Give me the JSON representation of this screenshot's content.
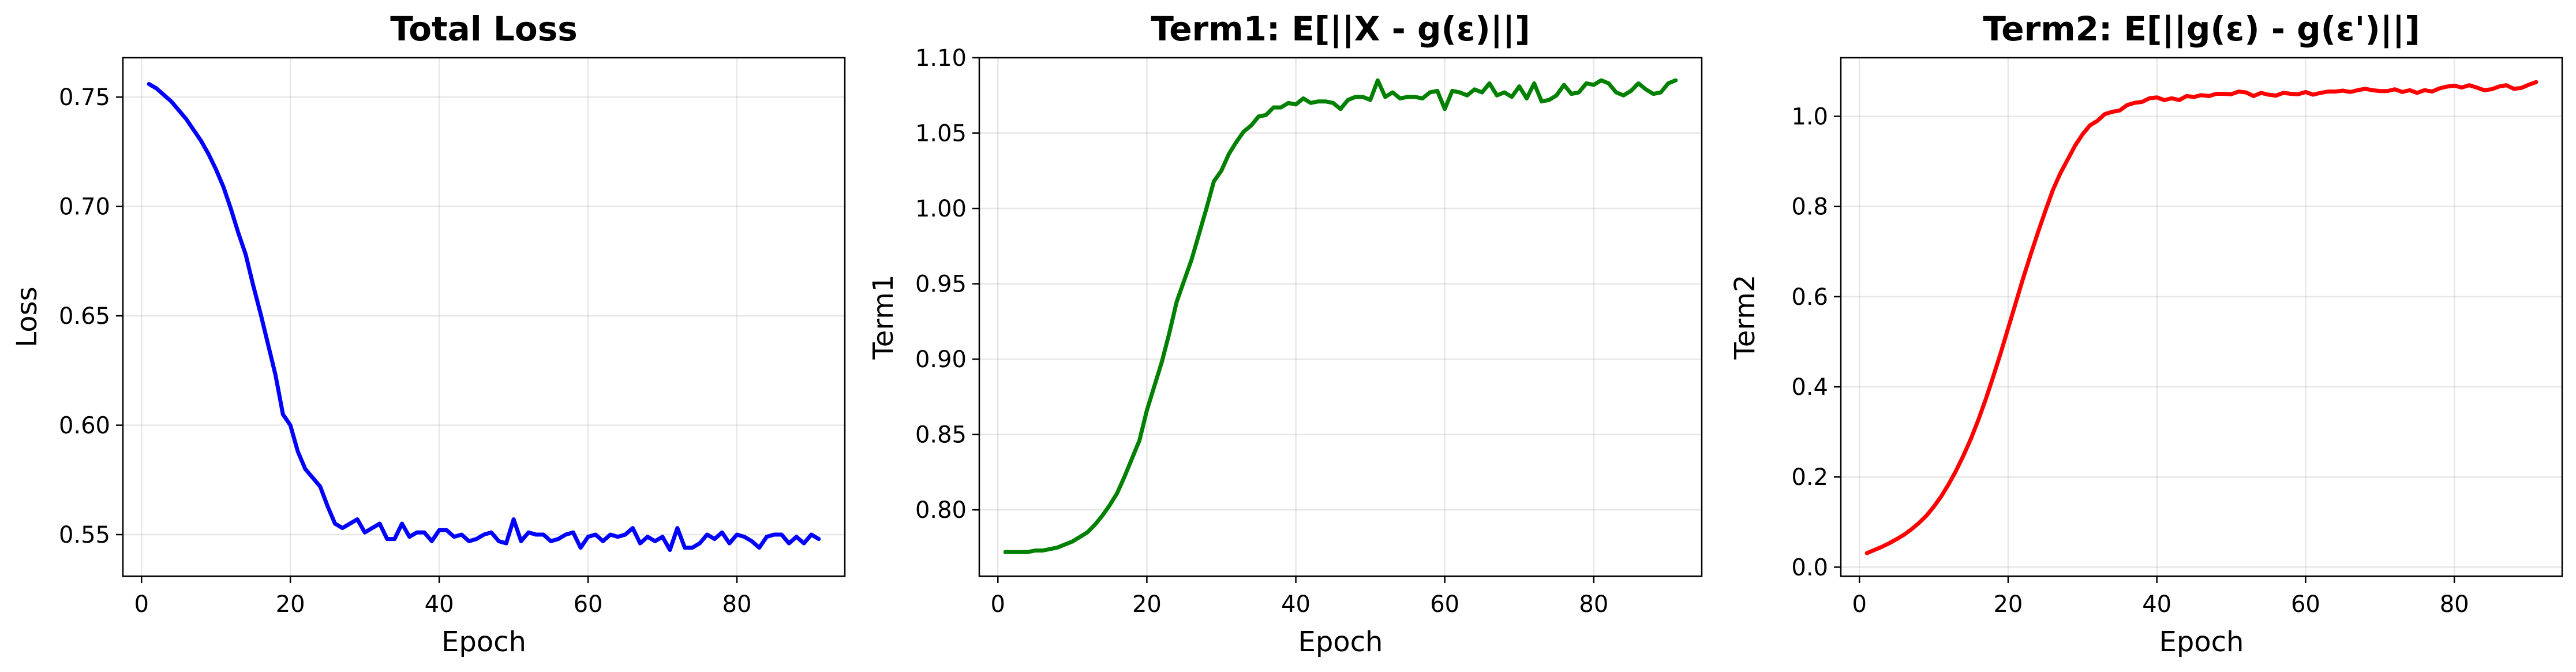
{
  "chart_data": [
    {
      "type": "line",
      "title": "Total Loss",
      "xlabel": "Epoch",
      "ylabel": "Loss",
      "xlim": [
        -2.5,
        94.5
      ],
      "ylim": [
        0.531,
        0.768
      ],
      "xticks": [
        0,
        20,
        40,
        60,
        80
      ],
      "yticks": [
        0.55,
        0.6,
        0.65,
        0.7,
        0.75
      ],
      "ytick_labels": [
        "0.55",
        "0.60",
        "0.65",
        "0.70",
        "0.75"
      ],
      "grid": true,
      "color": "#0000ff",
      "series": [
        {
          "x": [
            1,
            2,
            3,
            4,
            5,
            6,
            7,
            8,
            9,
            10,
            11,
            12,
            13,
            14,
            15,
            16,
            17,
            18,
            19,
            20,
            21,
            22,
            23,
            24,
            25,
            26,
            27,
            28,
            29,
            30,
            31,
            32,
            33,
            34,
            35,
            36,
            37,
            38,
            39,
            40,
            41,
            42,
            43,
            44,
            45,
            46,
            47,
            48,
            49,
            50,
            51,
            52,
            53,
            54,
            55,
            56,
            57,
            58,
            59,
            60,
            61,
            62,
            63,
            64,
            65,
            66,
            67,
            68,
            69,
            70,
            71,
            72,
            73,
            74,
            75,
            76,
            77,
            78,
            79,
            80,
            81,
            82,
            83,
            84,
            85,
            86,
            87,
            88,
            89,
            90,
            91
          ],
          "values": [
            0.756,
            0.754,
            0.751,
            0.748,
            0.744,
            0.74,
            0.735,
            0.73,
            0.724,
            0.717,
            0.709,
            0.699,
            0.688,
            0.678,
            0.664,
            0.651,
            0.637,
            0.623,
            0.605,
            0.6,
            0.588,
            0.58,
            0.576,
            0.572,
            0.563,
            0.555,
            0.553,
            0.555,
            0.557,
            0.551,
            0.553,
            0.555,
            0.548,
            0.548,
            0.555,
            0.549,
            0.551,
            0.551,
            0.547,
            0.552,
            0.552,
            0.549,
            0.55,
            0.547,
            0.548,
            0.55,
            0.551,
            0.547,
            0.546,
            0.557,
            0.547,
            0.551,
            0.55,
            0.55,
            0.547,
            0.548,
            0.55,
            0.551,
            0.544,
            0.549,
            0.55,
            0.547,
            0.55,
            0.549,
            0.55,
            0.553,
            0.546,
            0.549,
            0.547,
            0.549,
            0.543,
            0.553,
            0.544,
            0.544,
            0.546,
            0.55,
            0.548,
            0.551,
            0.546,
            0.55,
            0.549,
            0.547,
            0.544,
            0.549,
            0.55,
            0.55,
            0.546,
            0.549,
            0.546,
            0.55,
            0.548
          ]
        }
      ]
    },
    {
      "type": "line",
      "title": "Term1: E[||X - g(ε)||]",
      "xlabel": "Epoch",
      "ylabel": "Term1",
      "xlim": [
        -2.5,
        94.5
      ],
      "ylim": [
        0.756,
        1.1
      ],
      "xticks": [
        0,
        20,
        40,
        60,
        80
      ],
      "yticks": [
        0.8,
        0.85,
        0.9,
        0.95,
        1.0,
        1.05,
        1.1
      ],
      "ytick_labels": [
        "0.80",
        "0.85",
        "0.90",
        "0.95",
        "1.00",
        "1.05",
        "1.10"
      ],
      "grid": true,
      "color": "#008000",
      "series": [
        {
          "x": [
            1,
            2,
            3,
            4,
            5,
            6,
            7,
            8,
            9,
            10,
            11,
            12,
            13,
            14,
            15,
            16,
            17,
            18,
            19,
            20,
            21,
            22,
            23,
            24,
            25,
            26,
            27,
            28,
            29,
            30,
            31,
            32,
            33,
            34,
            35,
            36,
            37,
            38,
            39,
            40,
            41,
            42,
            43,
            44,
            45,
            46,
            47,
            48,
            49,
            50,
            51,
            52,
            53,
            54,
            55,
            56,
            57,
            58,
            59,
            60,
            61,
            62,
            63,
            64,
            65,
            66,
            67,
            68,
            69,
            70,
            71,
            72,
            73,
            74,
            75,
            76,
            77,
            78,
            79,
            80,
            81,
            82,
            83,
            84,
            85,
            86,
            87,
            88,
            89,
            90,
            91
          ],
          "values": [
            0.772,
            0.772,
            0.772,
            0.772,
            0.773,
            0.773,
            0.774,
            0.775,
            0.777,
            0.779,
            0.782,
            0.785,
            0.79,
            0.796,
            0.803,
            0.811,
            0.822,
            0.834,
            0.846,
            0.866,
            0.882,
            0.898,
            0.917,
            0.938,
            0.952,
            0.966,
            0.983,
            1.0,
            1.018,
            1.025,
            1.036,
            1.044,
            1.051,
            1.055,
            1.061,
            1.062,
            1.067,
            1.067,
            1.07,
            1.069,
            1.073,
            1.07,
            1.071,
            1.071,
            1.07,
            1.066,
            1.072,
            1.074,
            1.074,
            1.072,
            1.085,
            1.074,
            1.077,
            1.073,
            1.074,
            1.074,
            1.073,
            1.077,
            1.078,
            1.066,
            1.078,
            1.077,
            1.075,
            1.079,
            1.077,
            1.083,
            1.075,
            1.077,
            1.074,
            1.081,
            1.073,
            1.083,
            1.071,
            1.072,
            1.075,
            1.082,
            1.076,
            1.077,
            1.083,
            1.082,
            1.085,
            1.083,
            1.077,
            1.075,
            1.078,
            1.083,
            1.079,
            1.076,
            1.077,
            1.083,
            1.085
          ]
        }
      ]
    },
    {
      "type": "line",
      "title": "Term2: E[||g(ε) - g(ε')||]",
      "xlabel": "Epoch",
      "ylabel": "Term2",
      "xlim": [
        -2.5,
        94.5
      ],
      "ylim": [
        -0.02,
        1.13
      ],
      "xticks": [
        0,
        20,
        40,
        60,
        80
      ],
      "yticks": [
        0.0,
        0.2,
        0.4,
        0.6,
        0.8,
        1.0
      ],
      "ytick_labels": [
        "0.0",
        "0.2",
        "0.4",
        "0.6",
        "0.8",
        "1.0"
      ],
      "grid": true,
      "color": "#ff0000",
      "series": [
        {
          "x": [
            1,
            2,
            3,
            4,
            5,
            6,
            7,
            8,
            9,
            10,
            11,
            12,
            13,
            14,
            15,
            16,
            17,
            18,
            19,
            20,
            21,
            22,
            23,
            24,
            25,
            26,
            27,
            28,
            29,
            30,
            31,
            32,
            33,
            34,
            35,
            36,
            37,
            38,
            39,
            40,
            41,
            42,
            43,
            44,
            45,
            46,
            47,
            48,
            49,
            50,
            51,
            52,
            53,
            54,
            55,
            56,
            57,
            58,
            59,
            60,
            61,
            62,
            63,
            64,
            65,
            66,
            67,
            68,
            69,
            70,
            71,
            72,
            73,
            74,
            75,
            76,
            77,
            78,
            79,
            80,
            81,
            82,
            83,
            84,
            85,
            86,
            87,
            88,
            89,
            90,
            91
          ],
          "values": [
            0.031,
            0.038,
            0.045,
            0.053,
            0.062,
            0.072,
            0.084,
            0.098,
            0.114,
            0.134,
            0.157,
            0.184,
            0.214,
            0.248,
            0.285,
            0.327,
            0.373,
            0.423,
            0.475,
            0.53,
            0.585,
            0.64,
            0.692,
            0.742,
            0.79,
            0.836,
            0.873,
            0.904,
            0.935,
            0.96,
            0.98,
            0.99,
            1.005,
            1.01,
            1.013,
            1.025,
            1.03,
            1.032,
            1.04,
            1.042,
            1.036,
            1.04,
            1.036,
            1.045,
            1.043,
            1.047,
            1.045,
            1.05,
            1.05,
            1.049,
            1.055,
            1.053,
            1.045,
            1.052,
            1.048,
            1.046,
            1.052,
            1.05,
            1.049,
            1.054,
            1.048,
            1.052,
            1.055,
            1.055,
            1.057,
            1.054,
            1.058,
            1.061,
            1.058,
            1.056,
            1.056,
            1.06,
            1.054,
            1.058,
            1.052,
            1.058,
            1.055,
            1.062,
            1.066,
            1.068,
            1.064,
            1.069,
            1.064,
            1.058,
            1.06,
            1.066,
            1.069,
            1.061,
            1.063,
            1.07,
            1.076
          ]
        }
      ]
    }
  ]
}
